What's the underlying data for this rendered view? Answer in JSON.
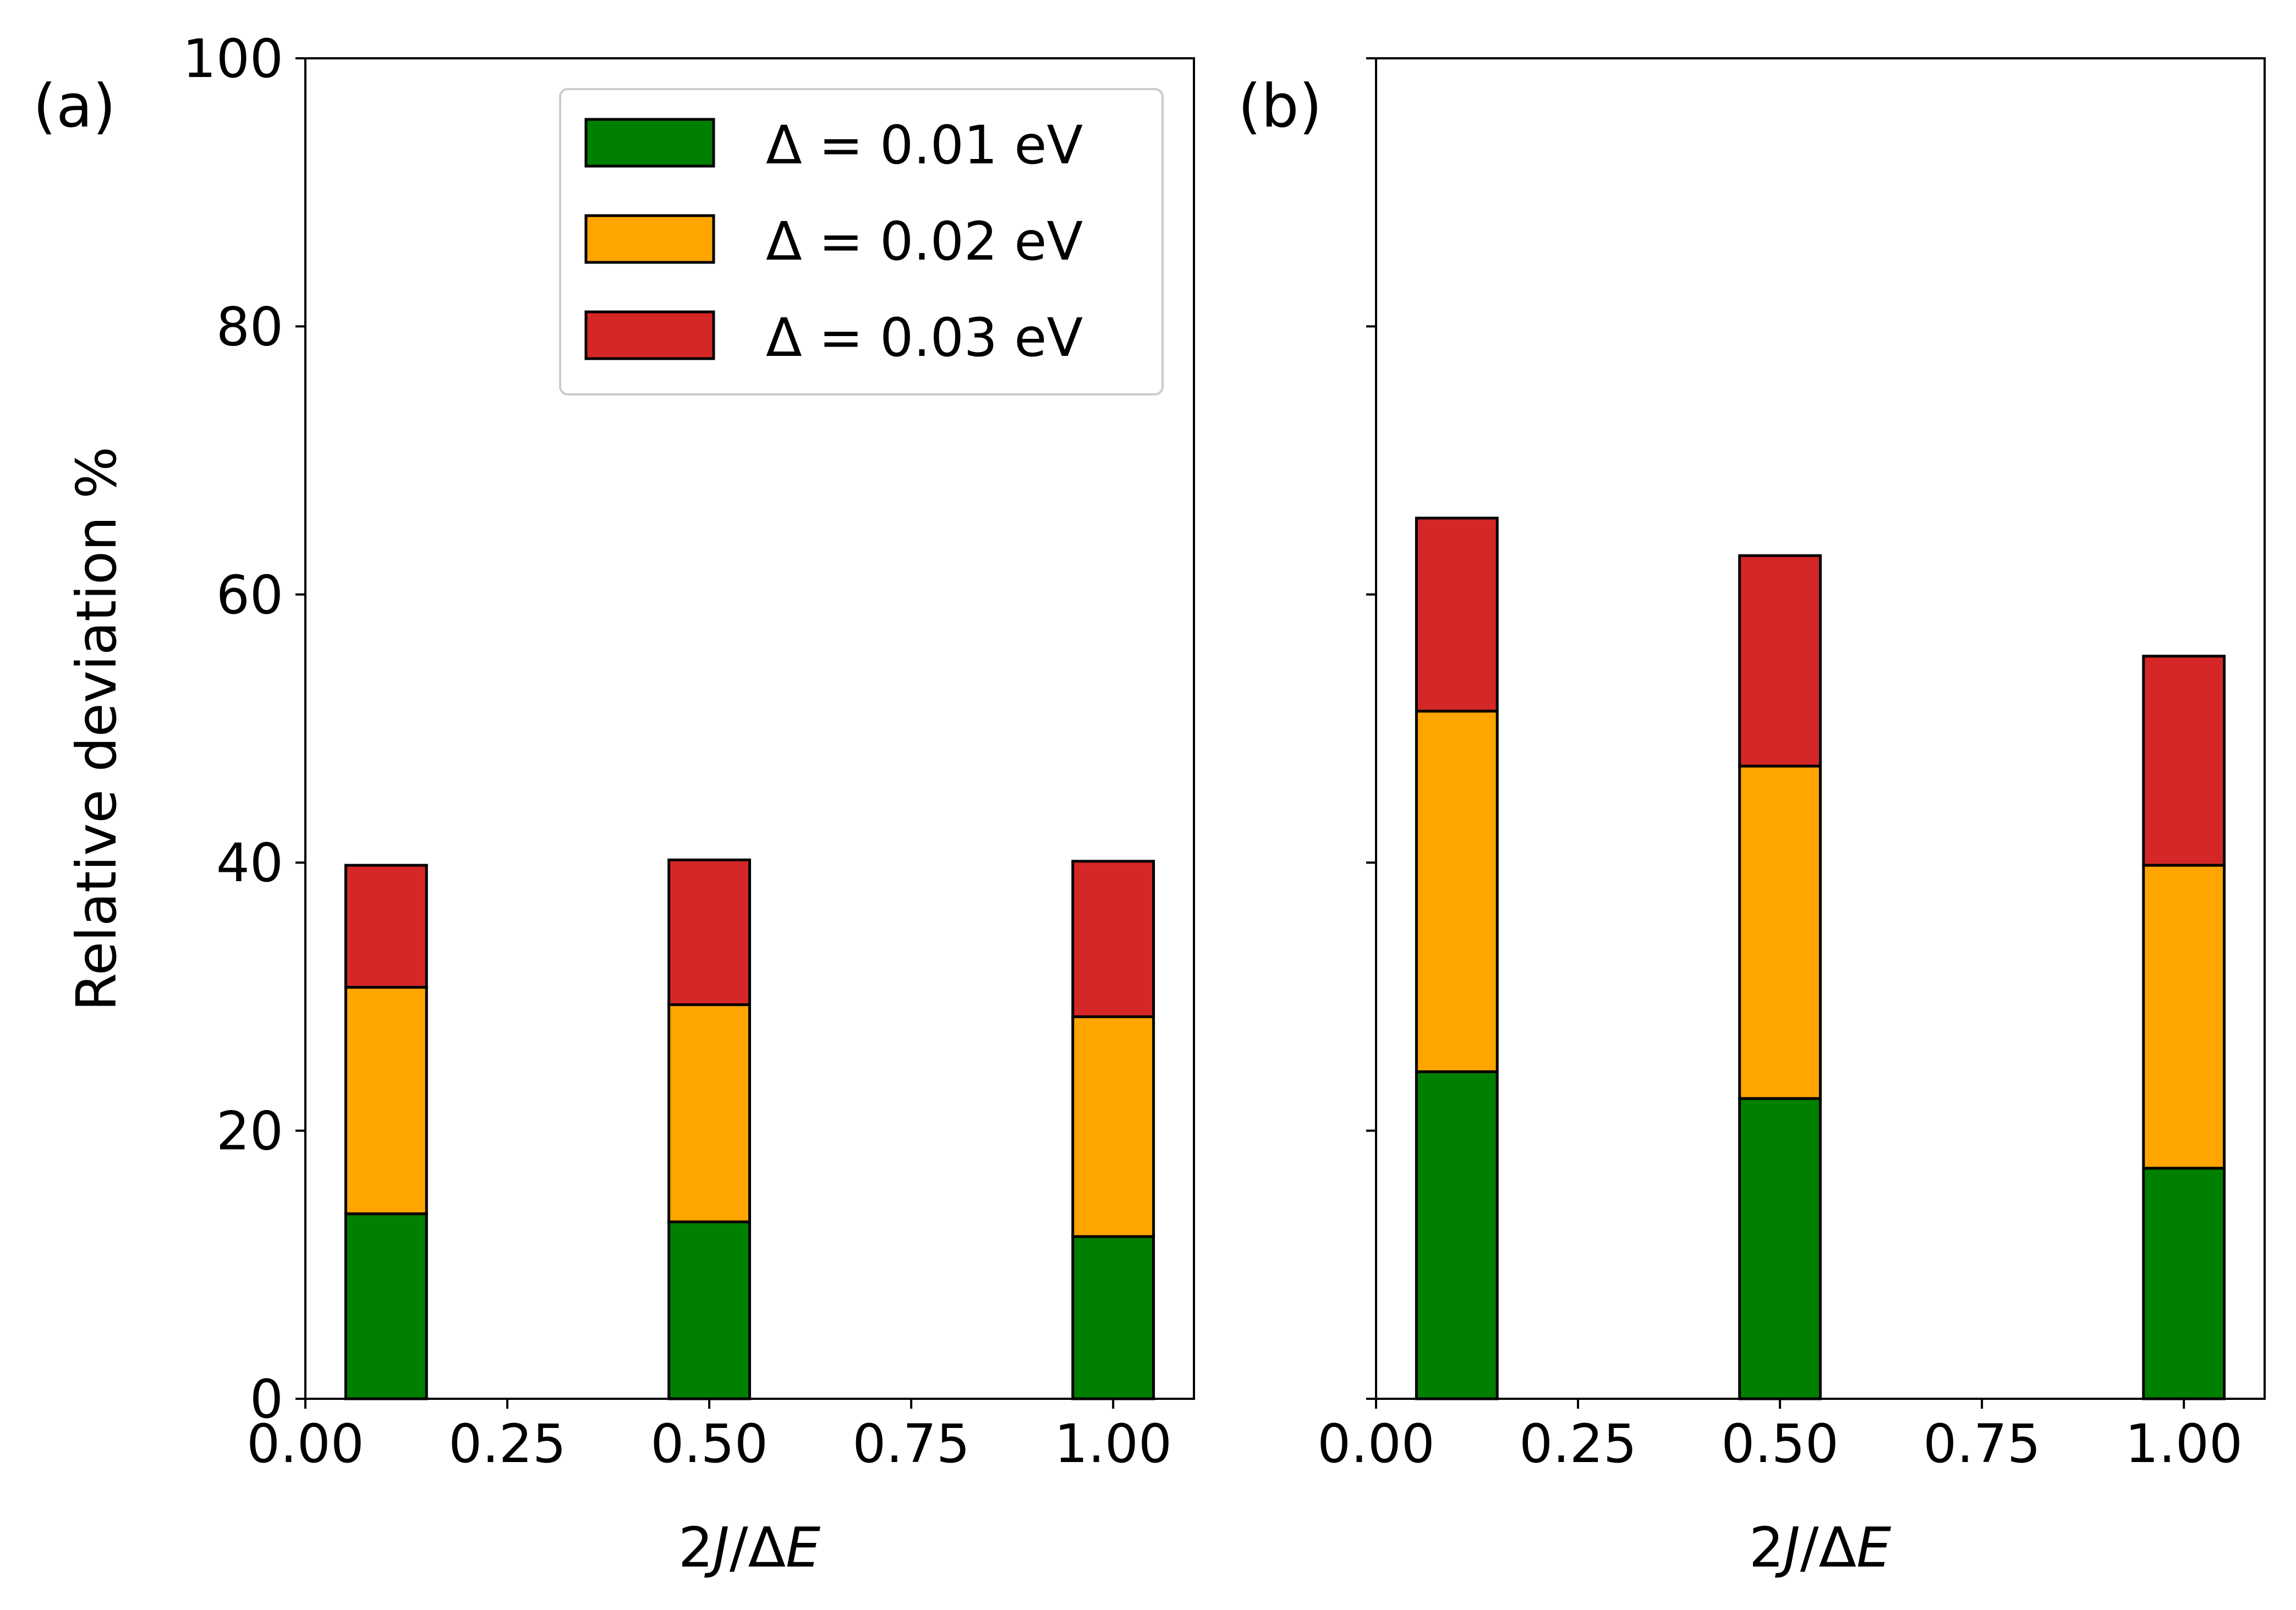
{
  "chart_data": [
    {
      "type": "bar",
      "stacked": true,
      "panel_label": "(a)",
      "xlabel": "2J/ΔE",
      "ylabel": "Relative deviation %",
      "xlim": [
        0.0,
        1.1
      ],
      "ylim": [
        0,
        100
      ],
      "xticks": [
        "0.00",
        "0.25",
        "0.50",
        "0.75",
        "1.00"
      ],
      "yticks": [
        "0",
        "20",
        "40",
        "60",
        "80",
        "100"
      ],
      "bar_width": 0.1,
      "x": [
        0.1,
        0.5,
        1.0
      ],
      "series": [
        {
          "name": "Δ = 0.01 eV",
          "color": "#008000",
          "values": [
            13.8,
            13.2,
            12.1
          ]
        },
        {
          "name": "Δ = 0.02 eV",
          "color": "#FFA500",
          "values": [
            16.9,
            16.2,
            16.4
          ]
        },
        {
          "name": "Δ = 0.03 eV",
          "color": "#D62728",
          "values": [
            9.1,
            10.8,
            11.6
          ]
        }
      ],
      "legend": {
        "location": "top-right"
      }
    },
    {
      "type": "bar",
      "stacked": true,
      "panel_label": "(b)",
      "xlabel": "2J/ΔE",
      "xlim": [
        0.0,
        1.1
      ],
      "ylim": [
        0,
        100
      ],
      "xticks": [
        "0.00",
        "0.25",
        "0.50",
        "0.75",
        "1.00"
      ],
      "bar_width": 0.1,
      "x": [
        0.1,
        0.5,
        1.0
      ],
      "series": [
        {
          "name": "Δ = 0.01 eV",
          "color": "#008000",
          "values": [
            24.4,
            22.4,
            17.2
          ]
        },
        {
          "name": "Δ = 0.02 eV",
          "color": "#FFA500",
          "values": [
            26.9,
            24.8,
            22.6
          ]
        },
        {
          "name": "Δ = 0.03 eV",
          "color": "#D62728",
          "values": [
            14.4,
            15.7,
            15.6
          ]
        }
      ]
    }
  ]
}
